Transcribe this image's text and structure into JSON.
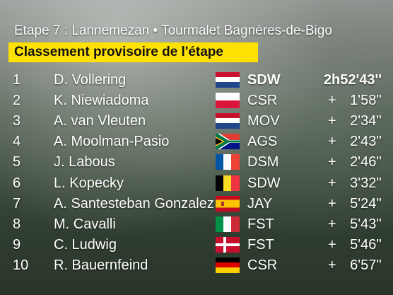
{
  "header": {
    "title": "Étape 7 : Lannemezan • Tourmalet Bagnères-de-Bigo",
    "subtitle": "Classement provisoire de l'étape"
  },
  "table": {
    "rows": [
      [
        "1",
        "D. Vollering",
        "SDW",
        "2h52'43''"
      ],
      [
        "2",
        "K. Niewiadoma",
        "CSR",
        "+ 1'58''"
      ],
      [
        "3",
        "A. van Vleuten",
        "MOV",
        "+ 2'34''"
      ],
      [
        "4",
        "A. Moolman-Pasio",
        "AGS",
        "+ 2'43''"
      ],
      [
        "5",
        "J. Labous",
        "DSM",
        "+ 2'46''"
      ],
      [
        "6",
        "L. Kopecky",
        "SDW",
        "+ 3'32''"
      ],
      [
        "7",
        "A. Santesteban Gonzalez",
        "JAY",
        "+ 5'24''"
      ],
      [
        "8",
        "M. Cavalli",
        "FST",
        "+ 5'43''"
      ],
      [
        "9",
        "C. Ludwig",
        "FST",
        "+ 5'46''"
      ],
      [
        "10",
        "R. Bauernfeind",
        "CSR",
        "+ 6'57''"
      ]
    ]
  }
}
